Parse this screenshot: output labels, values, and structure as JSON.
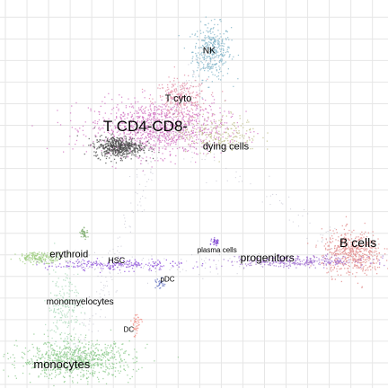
{
  "chart_data": {
    "type": "scatter",
    "title": "",
    "xlabel": "",
    "ylabel": "",
    "xlim": [
      0,
      100
    ],
    "ylim": [
      0,
      100
    ],
    "grid": true,
    "grid_x": [
      0,
      5.67,
      11.34,
      17.01,
      22.68,
      28.35,
      34.02,
      39.69,
      45.36,
      51.03,
      56.7,
      62.37,
      68.04,
      73.71,
      79.38,
      85.05,
      90.72,
      96.39
    ],
    "grid_y": [
      0,
      5.67,
      11.34,
      17.01,
      22.68,
      28.35,
      34.02,
      39.69,
      45.36,
      51.03,
      56.7,
      62.37,
      68.04,
      73.71,
      79.38,
      85.05,
      90.72,
      96.39
    ],
    "clusters": [
      {
        "label": "NK",
        "x": 54.1,
        "y": 87.6,
        "color": "#7fb3c7",
        "points": 360,
        "sx": 2.5,
        "sy": 3.6
      },
      {
        "label": "T cyto",
        "x": 45.8,
        "y": 75.0,
        "color": "#e08aa0",
        "points": 260,
        "sx": 3.5,
        "sy": 2.6
      },
      {
        "label": "T CD4-CD8-",
        "x": 40.0,
        "y": 67.5,
        "color": "#d070c0",
        "points": 1100,
        "sx": 8.8,
        "sy": 3.6
      },
      {
        "label": "",
        "x": 29.6,
        "y": 62.5,
        "color": "#444444",
        "points": 520,
        "sx": 3.2,
        "sy": 1.4
      },
      {
        "label": "dying cells",
        "x": 55.5,
        "y": 66.0,
        "color": "#bfbf8a",
        "points": 220,
        "sx": 5.5,
        "sy": 2.4
      },
      {
        "label": "B cells",
        "x": 91.0,
        "y": 34.6,
        "color": "#e08888",
        "points": 540,
        "sx": 4.0,
        "sy": 2.9
      },
      {
        "label": "progenitors",
        "x": 76.6,
        "y": 32.4,
        "color": "#a070d0",
        "points": 320,
        "sx": 9.5,
        "sy": 0.7
      },
      {
        "label": "plasma cells",
        "x": 55.1,
        "y": 37.5,
        "color": "#7a3fd0",
        "points": 35,
        "sx": 0.5,
        "sy": 0.5
      },
      {
        "label": "HSC",
        "x": 28.5,
        "y": 31.5,
        "color": "#8a4ad8",
        "points": 220,
        "sx": 9.0,
        "sy": 0.7
      },
      {
        "label": "pDC",
        "x": 40.5,
        "y": 26.4,
        "color": "#6070c0",
        "points": 30,
        "sx": 0.6,
        "sy": 0.8
      },
      {
        "label": "erythroid",
        "x": 9.0,
        "y": 33.5,
        "color": "#9ccc7e",
        "points": 180,
        "sx": 3.0,
        "sy": 0.7
      },
      {
        "label": "",
        "x": 20.5,
        "y": 40.0,
        "color": "#7aaa6a",
        "points": 40,
        "sx": 0.5,
        "sy": 0.7
      },
      {
        "label": "monomyelocytes",
        "x": 15.5,
        "y": 20.5,
        "color": "#a8d8b8",
        "points": 200,
        "sx": 2.2,
        "sy": 5.5
      },
      {
        "label": "DC",
        "x": 34.2,
        "y": 16.0,
        "color": "#f08a80",
        "points": 40,
        "sx": 0.7,
        "sy": 1.6
      },
      {
        "label": "monocytes",
        "x": 18.5,
        "y": 6.5,
        "color": "#88c888",
        "points": 820,
        "sx": 7.5,
        "sy": 2.4
      }
    ],
    "labels": [
      {
        "text": "NK",
        "x": 53.5,
        "y": 87.5,
        "size": 10
      },
      {
        "text": "T cyto",
        "x": 45.4,
        "y": 75.0,
        "size": 11
      },
      {
        "text": "T CD4-CD8-",
        "x": 36.8,
        "y": 67.6,
        "size": 17
      },
      {
        "text": "dying cells",
        "x": 57.9,
        "y": 62.3,
        "size": 11
      },
      {
        "text": "B cells",
        "x": 92.6,
        "y": 37.0,
        "size": 14
      },
      {
        "text": "plasma cells",
        "x": 55.6,
        "y": 35.2,
        "size": 8
      },
      {
        "text": "progenitors",
        "x": 68.8,
        "y": 33.1,
        "size": 12
      },
      {
        "text": "erythroid",
        "x": 16.7,
        "y": 34.0,
        "size": 11
      },
      {
        "text": "HSC",
        "x": 29.2,
        "y": 32.4,
        "size": 9
      },
      {
        "text": "pDC",
        "x": 42.6,
        "y": 27.5,
        "size": 8
      },
      {
        "text": "monomyelocytes",
        "x": 19.6,
        "y": 21.6,
        "size": 10
      },
      {
        "text": "DC",
        "x": 32.4,
        "y": 14.3,
        "size": 8
      },
      {
        "text": "monocytes",
        "x": 14.8,
        "y": 5.1,
        "size": 13
      }
    ]
  }
}
